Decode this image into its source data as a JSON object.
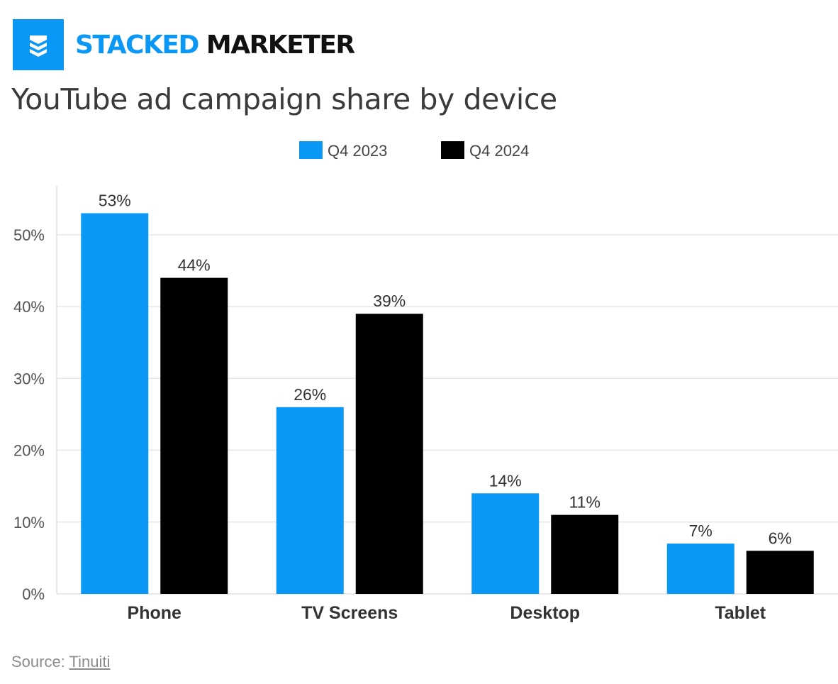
{
  "brand": {
    "part1": "STACKED",
    "part2": "MARKETER",
    "logo_icon": "stack-layers-icon",
    "accent_color": "#0a97f5"
  },
  "title": "YouTube ad campaign share by device",
  "source": {
    "label": "Source:",
    "link_text": "Tinuiti"
  },
  "chart_data": {
    "type": "bar",
    "categories": [
      "Phone",
      "TV Screens",
      "Desktop",
      "Tablet"
    ],
    "series": [
      {
        "name": "Q4 2023",
        "color": "#0a97f5",
        "values": [
          53,
          26,
          14,
          7
        ],
        "labels": [
          "53%",
          "26%",
          "14%",
          "7%"
        ]
      },
      {
        "name": "Q4 2024",
        "color": "#000000",
        "values": [
          44,
          39,
          11,
          6
        ],
        "labels": [
          "44%",
          "39%",
          "11%",
          "6%"
        ]
      }
    ],
    "y_ticks": [
      0,
      10,
      20,
      30,
      40,
      50
    ],
    "y_tick_labels": [
      "0%",
      "10%",
      "20%",
      "30%",
      "40%",
      "50%"
    ],
    "ylim": [
      0,
      56.8
    ],
    "grid": true,
    "legend_position": "top-center"
  }
}
